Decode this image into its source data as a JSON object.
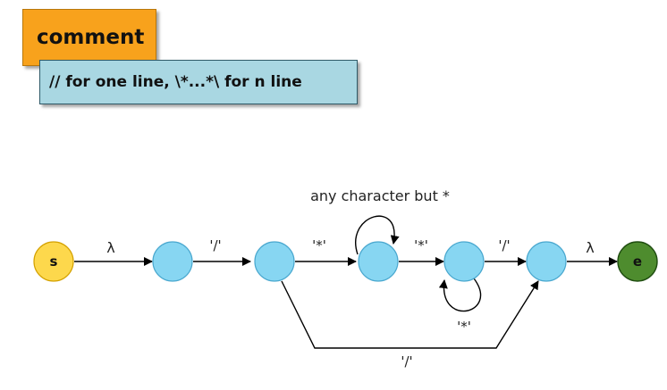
{
  "header": {
    "title": "comment",
    "subtitle": "// for one line, \\*...*\\ for n line"
  },
  "colors": {
    "title_bg": "#f8a21c",
    "subtitle_bg": "#a9d7e2",
    "start_node": "#fdd84c",
    "state_node": "#87d6f2",
    "end_node": "#4e8c2e"
  },
  "diagram": {
    "start_label": "s",
    "end_label": "e",
    "edge_labels": {
      "s_to_1": "λ",
      "1_to_2": "'/'",
      "2_to_3": "'*'",
      "3_to_4": "'*'",
      "4_to_5": "'/'",
      "5_to_e": "λ",
      "3_loop": "any character but *",
      "4_loop": "'*'",
      "2_to_5": "'/'"
    }
  }
}
